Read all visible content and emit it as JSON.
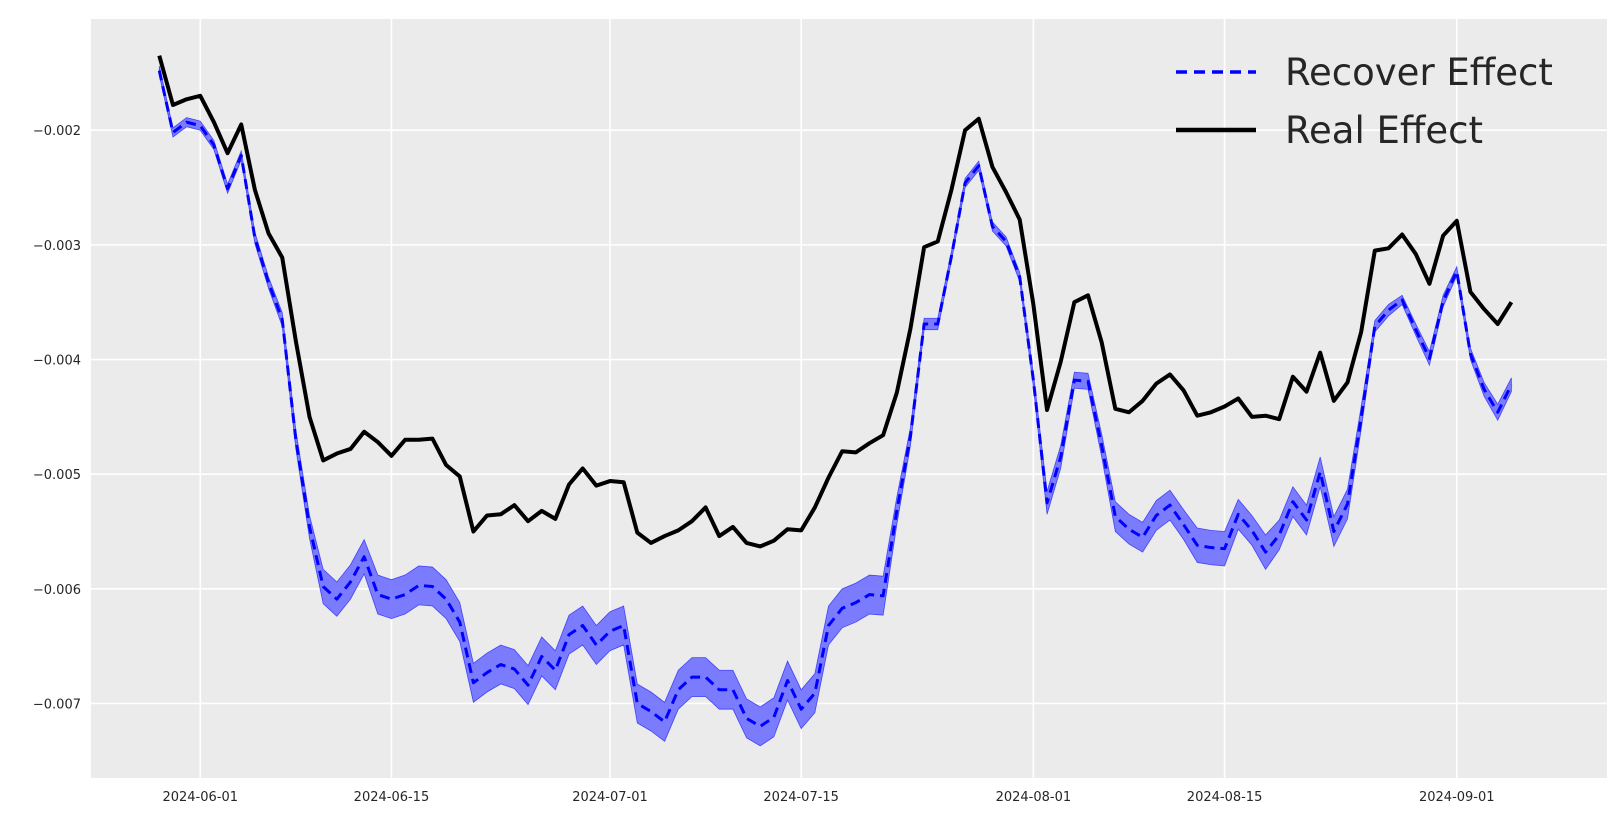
{
  "chart_data": {
    "type": "line",
    "title": "",
    "xlabel": "",
    "ylabel": "",
    "x_start": "2024-05-29",
    "x_step_days": 1,
    "n_points": 100,
    "xlim": [
      "2024-05-24",
      "2024-09-12"
    ],
    "ylim": [
      -0.00765,
      -0.00103
    ],
    "x_ticks": [
      "2024-06-01",
      "2024-06-15",
      "2024-07-01",
      "2024-07-15",
      "2024-08-01",
      "2024-08-15",
      "2024-09-01"
    ],
    "y_ticks": [
      -0.007,
      -0.006,
      -0.005,
      -0.004,
      -0.003,
      -0.002
    ],
    "y_tick_labels": [
      "−0.007",
      "−0.006",
      "−0.005",
      "−0.004",
      "−0.003",
      "−0.002"
    ],
    "grid": true,
    "legend": {
      "placement": "top-right",
      "entries": [
        "Recover Effect",
        "Real Effect"
      ]
    },
    "colors": {
      "background": "#ebebeb",
      "grid": "#ffffff",
      "real": "#000000",
      "recover": "#0000ff",
      "band": "#6f6fff"
    },
    "series": [
      {
        "name": "Real Effect",
        "style": "solid",
        "values": [
          -0.00135,
          -0.00178,
          -0.00173,
          -0.0017,
          -0.00193,
          -0.0022,
          -0.00195,
          -0.00252,
          -0.0029,
          -0.00311,
          -0.00384,
          -0.0045,
          -0.00488,
          -0.00482,
          -0.00478,
          -0.00463,
          -0.00472,
          -0.00484,
          -0.0047,
          -0.0047,
          -0.00469,
          -0.00492,
          -0.00502,
          -0.0055,
          -0.00536,
          -0.00535,
          -0.00527,
          -0.00541,
          -0.00532,
          -0.00539,
          -0.00509,
          -0.00495,
          -0.0051,
          -0.00506,
          -0.00507,
          -0.00551,
          -0.0056,
          -0.00554,
          -0.00549,
          -0.00541,
          -0.00529,
          -0.00554,
          -0.00546,
          -0.0056,
          -0.00563,
          -0.00558,
          -0.00548,
          -0.00549,
          -0.00529,
          -0.00503,
          -0.0048,
          -0.00481,
          -0.00473,
          -0.00466,
          -0.00429,
          -0.00373,
          -0.00302,
          -0.00297,
          -0.00252,
          -0.002,
          -0.0019,
          -0.00232,
          -0.00254,
          -0.00278,
          -0.00352,
          -0.00444,
          -0.00402,
          -0.0035,
          -0.00344,
          -0.00385,
          -0.00443,
          -0.00446,
          -0.00436,
          -0.00421,
          -0.00413,
          -0.00427,
          -0.00449,
          -0.00446,
          -0.00441,
          -0.00434,
          -0.0045,
          -0.00449,
          -0.00452,
          -0.00415,
          -0.00428,
          -0.00394,
          -0.00436,
          -0.0042,
          -0.00376,
          -0.00305,
          -0.00303,
          -0.00291,
          -0.00308,
          -0.00334,
          -0.00292,
          -0.00279,
          -0.00341,
          -0.00356,
          -0.00369,
          -0.0035
        ]
      },
      {
        "name": "Recover Effect",
        "style": "dashed",
        "values": [
          -0.00148,
          -0.00202,
          -0.00193,
          -0.00196,
          -0.00213,
          -0.00251,
          -0.00222,
          -0.00294,
          -0.00333,
          -0.00365,
          -0.0047,
          -0.00546,
          -0.00598,
          -0.00609,
          -0.00594,
          -0.00572,
          -0.00605,
          -0.00609,
          -0.00605,
          -0.00597,
          -0.00598,
          -0.00609,
          -0.00629,
          -0.00682,
          -0.00673,
          -0.00666,
          -0.0067,
          -0.00684,
          -0.00659,
          -0.00671,
          -0.0064,
          -0.00632,
          -0.00649,
          -0.00637,
          -0.00632,
          -0.007,
          -0.00707,
          -0.00716,
          -0.00688,
          -0.00677,
          -0.00677,
          -0.00688,
          -0.00688,
          -0.00713,
          -0.0072,
          -0.00712,
          -0.0068,
          -0.00705,
          -0.00691,
          -0.00632,
          -0.00617,
          -0.00612,
          -0.00605,
          -0.00606,
          -0.00532,
          -0.00467,
          -0.00369,
          -0.00369,
          -0.0031,
          -0.00246,
          -0.00231,
          -0.00284,
          -0.00297,
          -0.00328,
          -0.00418,
          -0.00525,
          -0.00485,
          -0.00418,
          -0.00419,
          -0.00475,
          -0.00537,
          -0.00548,
          -0.00555,
          -0.00536,
          -0.00527,
          -0.00544,
          -0.00562,
          -0.00564,
          -0.00565,
          -0.00535,
          -0.00549,
          -0.00568,
          -0.00553,
          -0.00524,
          -0.0054,
          -0.00498,
          -0.0055,
          -0.00526,
          -0.00451,
          -0.00371,
          -0.00357,
          -0.00348,
          -0.00374,
          -0.00399,
          -0.00349,
          -0.00323,
          -0.00395,
          -0.00426,
          -0.00446,
          -0.00422
        ]
      }
    ],
    "band": {
      "series": "Recover Effect",
      "half_width": [
        4e-05,
        4e-05,
        4e-05,
        4e-05,
        4e-05,
        4e-05,
        4e-05,
        5e-05,
        5e-05,
        6e-05,
        8e-05,
        0.0001,
        0.00015,
        0.00015,
        0.00015,
        0.00015,
        0.00017,
        0.00017,
        0.00017,
        0.00017,
        0.00017,
        0.00017,
        0.00017,
        0.00017,
        0.00017,
        0.00017,
        0.00017,
        0.00017,
        0.00017,
        0.00017,
        0.00017,
        0.00017,
        0.00017,
        0.00017,
        0.00017,
        0.00017,
        0.00017,
        0.00017,
        0.00017,
        0.00017,
        0.00017,
        0.00017,
        0.00017,
        0.00017,
        0.00017,
        0.00017,
        0.00017,
        0.00017,
        0.00017,
        0.00017,
        0.00017,
        0.00017,
        0.00017,
        0.00017,
        0.00012,
        8e-05,
        5e-05,
        5e-05,
        4e-05,
        4e-05,
        4e-05,
        4e-05,
        4e-05,
        4e-05,
        6e-05,
        0.0001,
        0.0001,
        7e-05,
        7e-05,
        0.0001,
        0.00013,
        0.00013,
        0.00013,
        0.00013,
        0.00013,
        0.00013,
        0.00015,
        0.00015,
        0.00015,
        0.00013,
        0.00013,
        0.00015,
        0.00013,
        0.00013,
        0.00013,
        0.00013,
        0.00013,
        0.00013,
        0.0001,
        5e-05,
        5e-05,
        4e-05,
        5e-05,
        6e-05,
        5e-05,
        4e-05,
        5e-05,
        6e-05,
        7e-05,
        6e-05
      ]
    }
  }
}
